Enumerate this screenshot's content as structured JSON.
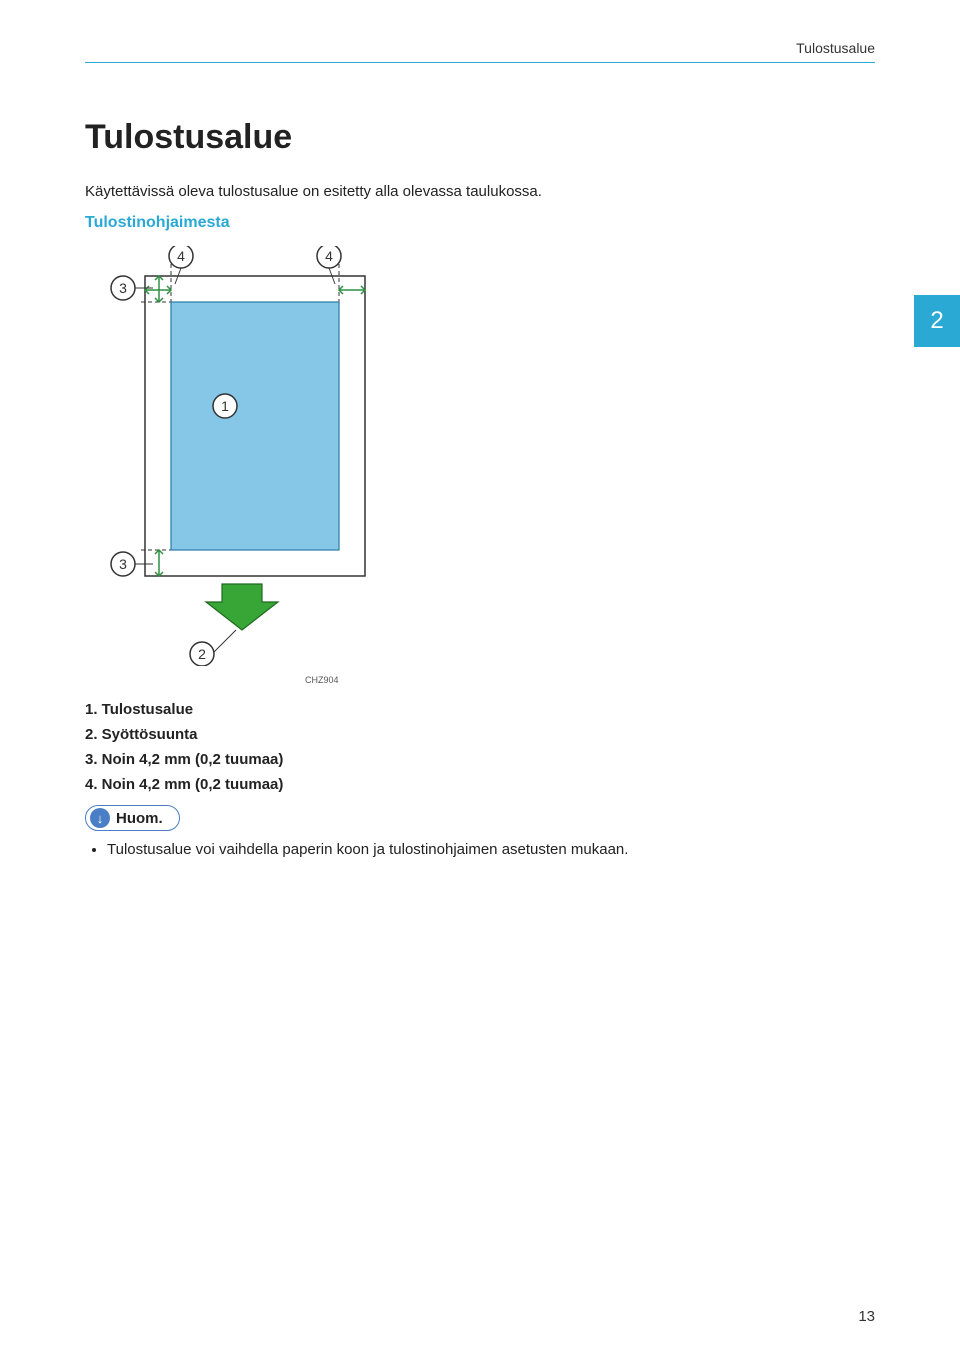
{
  "header": {
    "breadcrumb": "Tulostusalue"
  },
  "section_tab": "2",
  "title": "Tulostusalue",
  "intro": "Käytettävissä oleva tulostusalue on esitetty alla olevassa taulukossa.",
  "subheading": "Tulostinohjaimesta",
  "diagram": {
    "code": "CHZ904",
    "paper_fill": "#ffffff",
    "paper_stroke": "#333333",
    "printarea_fill": "#86c7e8",
    "printarea_stroke": "#2a7ba8",
    "dashed_stroke": "#333333",
    "arrow_green_fill": "#37a637",
    "arrow_green_stroke": "#1e6a1e",
    "margin_arrow_stroke": "#2f9040",
    "callout_fill": "#ffffff",
    "callout_stroke": "#333333",
    "callout_text_color": "#333333",
    "callouts": {
      "c1": "1",
      "c2": "2",
      "c3": "3",
      "c4": "4"
    }
  },
  "legend": {
    "i1": "1. Tulostusalue",
    "i2": "2. Syöttösuunta",
    "i3": "3. Noin 4,2 mm (0,2 tuumaa)",
    "i4": "4. Noin 4,2 mm (0,2 tuumaa)"
  },
  "note": {
    "label": "Huom.",
    "bullet": "Tulostusalue voi vaihdella paperin koon ja tulostinohjaimen asetusten mukaan."
  },
  "page_number": "13"
}
